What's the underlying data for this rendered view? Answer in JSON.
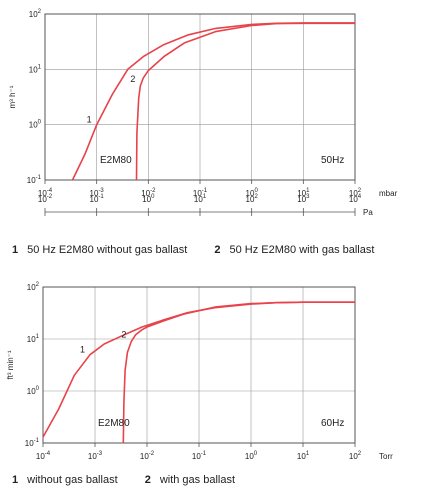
{
  "chart_data": [
    {
      "type": "line",
      "title": "",
      "ylabel": "m³ h⁻¹",
      "xlabel": "mbar",
      "x2label": "Pa",
      "x_scale": "log",
      "y_scale": "log",
      "xlim": [
        0.0001,
        100
      ],
      "ylim": [
        0.1,
        100
      ],
      "x2lim": [
        0.01,
        10000
      ],
      "x_ticks": [
        "10-4",
        "10-3",
        "10-2",
        "10-1",
        "100",
        "101",
        "102"
      ],
      "y_ticks": [
        "10-1",
        "100",
        "101",
        "102"
      ],
      "x2_ticks": [
        "10-2",
        "10-1",
        "100",
        "101",
        "102",
        "103",
        "104"
      ],
      "grid": true,
      "model_label": "E2M80",
      "freq_label": "50Hz",
      "series": [
        {
          "name": "1",
          "x": [
            0.00034,
            0.0006,
            0.001,
            0.002,
            0.004,
            0.008,
            0.02,
            0.06,
            0.2,
            1,
            3,
            10,
            100
          ],
          "y": [
            0.1,
            0.3,
            1.0,
            3.5,
            10,
            17,
            28,
            42,
            55,
            65,
            68,
            69,
            69
          ]
        },
        {
          "name": "2",
          "x": [
            0.0059,
            0.006,
            0.0065,
            0.007,
            0.008,
            0.01,
            0.02,
            0.05,
            0.2,
            1,
            3,
            10,
            100
          ],
          "y": [
            0.1,
            0.7,
            3.0,
            5.0,
            7.0,
            9.5,
            17,
            30,
            48,
            62,
            67,
            68,
            68
          ]
        }
      ],
      "legend": [
        {
          "num": "1",
          "text": "50 Hz E2M80 without gas ballast"
        },
        {
          "num": "2",
          "text": "50 Hz E2M80 with gas ballast"
        }
      ]
    },
    {
      "type": "line",
      "title": "",
      "ylabel": "ft³ min⁻¹",
      "xlabel": "Torr",
      "x_scale": "log",
      "y_scale": "log",
      "xlim": [
        0.0001,
        100
      ],
      "ylim": [
        0.1,
        100
      ],
      "x_ticks": [
        "10-4",
        "10-3",
        "10-2",
        "10-1",
        "100",
        "101",
        "102"
      ],
      "y_ticks": [
        "10-1",
        "100",
        "101",
        "102"
      ],
      "grid": true,
      "model_label": "E2M80",
      "freq_label": "60Hz",
      "series": [
        {
          "name": "1",
          "x": [
            0.0001,
            0.0002,
            0.0004,
            0.0008,
            0.0015,
            0.003,
            0.008,
            0.02,
            0.06,
            0.2,
            1,
            3,
            10,
            100
          ],
          "y": [
            0.13,
            0.45,
            2.0,
            5.0,
            8.0,
            11,
            17,
            23,
            32,
            40,
            47,
            50,
            51,
            51
          ]
        },
        {
          "name": "2",
          "x": [
            0.0035,
            0.0036,
            0.0038,
            0.0042,
            0.005,
            0.006,
            0.008,
            0.01,
            0.02,
            0.05,
            0.2,
            1,
            3,
            10,
            100
          ],
          "y": [
            0.1,
            0.6,
            2.5,
            5.5,
            9,
            12,
            15,
            17,
            22,
            30,
            41,
            48,
            50,
            51,
            51
          ]
        }
      ],
      "legend": [
        {
          "num": "1",
          "text": "without gas ballast"
        },
        {
          "num": "2",
          "text": "with gas ballast"
        }
      ]
    }
  ],
  "colors": {
    "curve": "#e8424a",
    "grid": "#999999",
    "frame": "#555555"
  }
}
